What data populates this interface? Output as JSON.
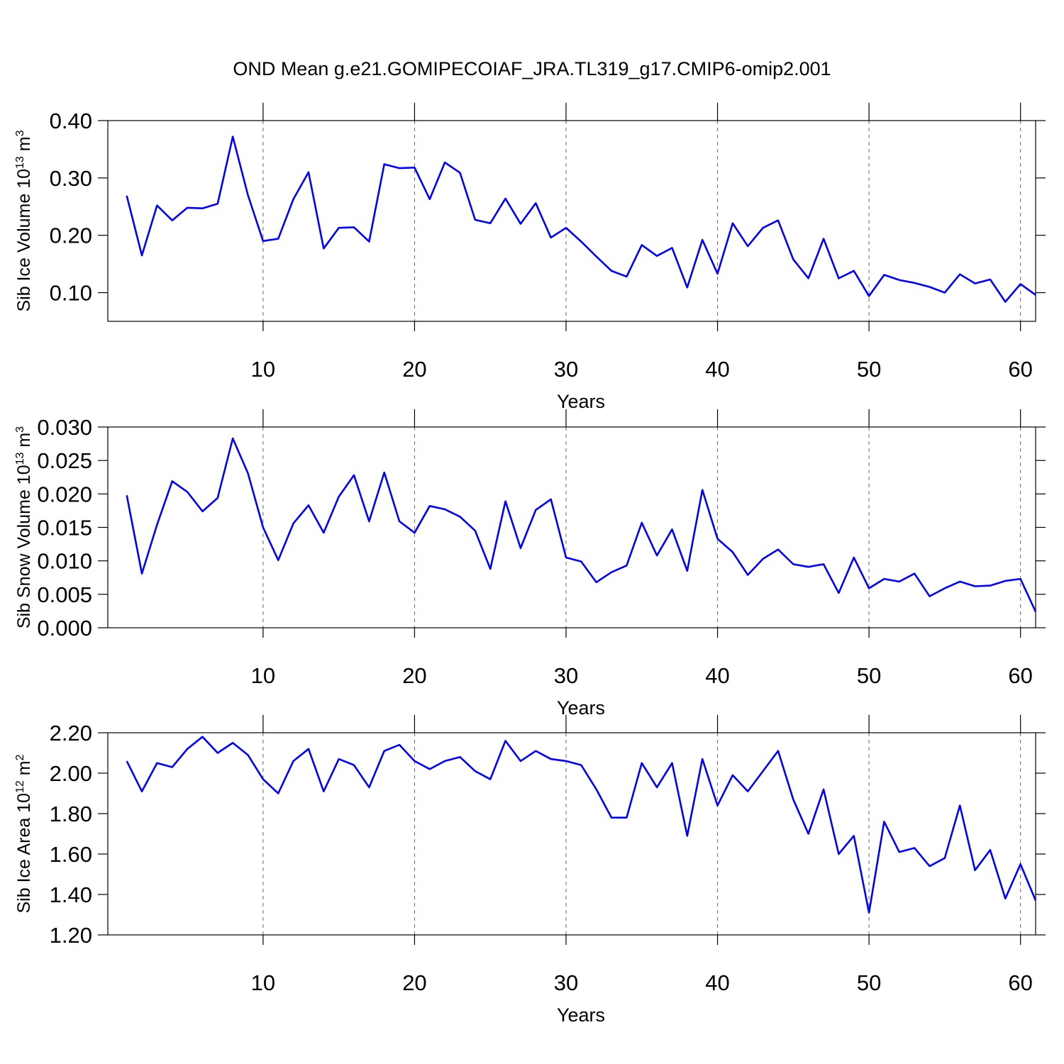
{
  "title": "OND Mean g.e21.GOMIPECOIAF_JRA.TL319_g17.CMIP6-omip2.001",
  "chart_data": [
    {
      "type": "line",
      "xlabel": "Years",
      "ylabel": [
        {
          "text": "Sib Ice Volume 10"
        },
        {
          "sup": "13"
        },
        {
          "text": " m"
        },
        {
          "sup": "3"
        }
      ],
      "x": [
        1,
        2,
        3,
        4,
        5,
        6,
        7,
        8,
        9,
        10,
        11,
        12,
        13,
        14,
        15,
        16,
        17,
        18,
        19,
        20,
        21,
        22,
        23,
        24,
        25,
        26,
        27,
        28,
        29,
        30,
        31,
        32,
        33,
        34,
        35,
        36,
        37,
        38,
        39,
        40,
        41,
        42,
        43,
        44,
        45,
        46,
        47,
        48,
        49,
        50,
        51,
        52,
        53,
        54,
        55,
        56,
        57,
        58,
        59,
        60,
        61
      ],
      "series": [
        {
          "color": "#0000ff",
          "values": [
            0.269,
            0.165,
            0.252,
            0.226,
            0.248,
            0.247,
            0.255,
            0.372,
            0.27,
            0.19,
            0.194,
            0.263,
            0.31,
            0.177,
            0.213,
            0.214,
            0.189,
            0.324,
            0.317,
            0.318,
            0.263,
            0.327,
            0.309,
            0.227,
            0.221,
            0.264,
            0.22,
            0.256,
            0.196,
            0.213,
            0.189,
            0.163,
            0.138,
            0.128,
            0.183,
            0.164,
            0.178,
            0.109,
            0.192,
            0.133,
            0.221,
            0.181,
            0.213,
            0.226,
            0.158,
            0.125,
            0.194,
            0.125,
            0.138,
            0.094,
            0.131,
            0.122,
            0.117,
            0.11,
            0.1,
            0.132,
            0.116,
            0.123,
            0.084,
            0.115,
            0.096
          ]
        }
      ],
      "xlim": [
        -0.25,
        61
      ],
      "xticks": [
        10,
        20,
        30,
        40,
        50,
        60
      ],
      "ylim": [
        0.05,
        0.4
      ],
      "yticks": [
        {
          "value": 0.1,
          "label": "0.10"
        },
        {
          "value": 0.2,
          "label": "0.20"
        },
        {
          "value": 0.3,
          "label": "0.30"
        },
        {
          "value": 0.4,
          "label": "0.40"
        }
      ],
      "grid": "x"
    },
    {
      "type": "line",
      "xlabel": "Years",
      "ylabel": [
        {
          "text": "Sib Snow Volume 10"
        },
        {
          "sup": "13"
        },
        {
          "text": " m"
        },
        {
          "sup": "3"
        }
      ],
      "x": [
        1,
        2,
        3,
        4,
        5,
        6,
        7,
        8,
        9,
        10,
        11,
        12,
        13,
        14,
        15,
        16,
        17,
        18,
        19,
        20,
        21,
        22,
        23,
        24,
        25,
        26,
        27,
        28,
        29,
        30,
        31,
        32,
        33,
        34,
        35,
        36,
        37,
        38,
        39,
        40,
        41,
        42,
        43,
        44,
        45,
        46,
        47,
        48,
        49,
        50,
        51,
        52,
        53,
        54,
        55,
        56,
        57,
        58,
        59,
        60,
        61
      ],
      "series": [
        {
          "color": "#0000ff",
          "values": [
            0.0198,
            0.0081,
            0.0154,
            0.0219,
            0.0203,
            0.0174,
            0.0194,
            0.0283,
            0.0231,
            0.015,
            0.0101,
            0.0156,
            0.0183,
            0.0142,
            0.0196,
            0.0228,
            0.0159,
            0.0232,
            0.0159,
            0.0142,
            0.0182,
            0.0177,
            0.0166,
            0.0145,
            0.0088,
            0.0189,
            0.0119,
            0.0176,
            0.0192,
            0.0105,
            0.0099,
            0.0068,
            0.0083,
            0.0093,
            0.0157,
            0.0108,
            0.0147,
            0.0085,
            0.0206,
            0.0133,
            0.0113,
            0.0079,
            0.0103,
            0.0117,
            0.0095,
            0.0091,
            0.0095,
            0.0052,
            0.0105,
            0.0059,
            0.0073,
            0.0069,
            0.0081,
            0.0047,
            0.0059,
            0.0069,
            0.0062,
            0.0063,
            0.007,
            0.0073,
            0.0024
          ]
        }
      ],
      "xlim": [
        -0.25,
        61
      ],
      "xticks": [
        10,
        20,
        30,
        40,
        50,
        60
      ],
      "ylim": [
        0,
        0.03
      ],
      "yticks": [
        {
          "value": 0,
          "label": "0.000"
        },
        {
          "value": 0.005,
          "label": "0.005"
        },
        {
          "value": 0.01,
          "label": "0.010"
        },
        {
          "value": 0.015,
          "label": "0.015"
        },
        {
          "value": 0.02,
          "label": "0.020"
        },
        {
          "value": 0.025,
          "label": "0.025"
        },
        {
          "value": 0.03,
          "label": "0.030"
        }
      ],
      "grid": "x"
    },
    {
      "type": "line",
      "xlabel": "Years",
      "ylabel": [
        {
          "text": "Sib Ice Area 10"
        },
        {
          "sup": "12"
        },
        {
          "text": " m"
        },
        {
          "sup": "2"
        }
      ],
      "x": [
        1,
        2,
        3,
        4,
        5,
        6,
        7,
        8,
        9,
        10,
        11,
        12,
        13,
        14,
        15,
        16,
        17,
        18,
        19,
        20,
        21,
        22,
        23,
        24,
        25,
        26,
        27,
        28,
        29,
        30,
        31,
        32,
        33,
        34,
        35,
        36,
        37,
        38,
        39,
        40,
        41,
        42,
        43,
        44,
        45,
        46,
        47,
        48,
        49,
        50,
        51,
        52,
        53,
        54,
        55,
        56,
        57,
        58,
        59,
        60,
        61
      ],
      "series": [
        {
          "color": "#0000ff",
          "values": [
            2.06,
            1.91,
            2.05,
            2.03,
            2.12,
            2.18,
            2.1,
            2.15,
            2.09,
            1.97,
            1.9,
            2.06,
            2.12,
            1.91,
            2.07,
            2.04,
            1.93,
            2.11,
            2.14,
            2.06,
            2.02,
            2.06,
            2.08,
            2.01,
            1.97,
            2.16,
            2.06,
            2.11,
            2.07,
            2.06,
            2.04,
            1.92,
            1.78,
            1.78,
            2.05,
            1.93,
            2.05,
            1.69,
            2.07,
            1.84,
            1.99,
            1.91,
            2.01,
            2.11,
            1.87,
            1.7,
            1.92,
            1.6,
            1.69,
            1.31,
            1.76,
            1.61,
            1.63,
            1.54,
            1.58,
            1.84,
            1.52,
            1.62,
            1.38,
            1.55,
            1.37
          ]
        }
      ],
      "xlim": [
        -0.25,
        61
      ],
      "xticks": [
        10,
        20,
        30,
        40,
        50,
        60
      ],
      "ylim": [
        1.2,
        2.2
      ],
      "yticks": [
        {
          "value": 1.2,
          "label": "1.20"
        },
        {
          "value": 1.4,
          "label": "1.40"
        },
        {
          "value": 1.6,
          "label": "1.60"
        },
        {
          "value": 1.8,
          "label": "1.80"
        },
        {
          "value": 2.0,
          "label": "2.00"
        },
        {
          "value": 2.2,
          "label": "2.20"
        }
      ],
      "grid": "x"
    }
  ]
}
